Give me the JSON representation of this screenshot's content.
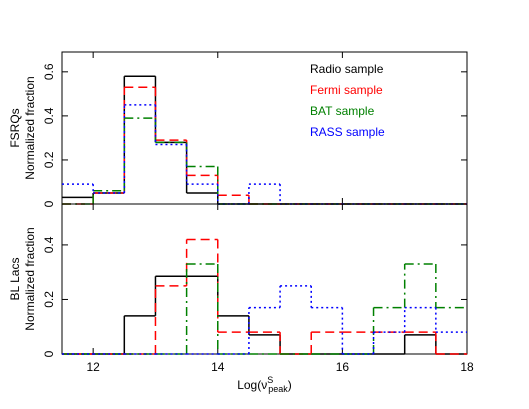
{
  "chart_data": [
    {
      "type": "histogram",
      "ylabel": [
        "FSRQs",
        "Normalized fraction"
      ],
      "bins": [
        11.5,
        12,
        12.5,
        13,
        13.5,
        14,
        14.5,
        15,
        15.5,
        16,
        16.5,
        17,
        17.5,
        18
      ],
      "xlim": [
        11.5,
        18
      ],
      "xticks": [
        12,
        14,
        16,
        18
      ],
      "xtick_labels": false,
      "ylim": [
        0,
        0.69
      ],
      "yticks": [
        0,
        0.2,
        0.4,
        0.6
      ],
      "legend": "top-right",
      "series": [
        {
          "name": "Radio sample",
          "color": "#000000",
          "style": "solid",
          "values": [
            0.03,
            0.05,
            0.58,
            0.28,
            0.05,
            0,
            0,
            0,
            0,
            0,
            0,
            0,
            0
          ]
        },
        {
          "name": "Fermi sample",
          "color": "#ff0000",
          "style": "dashed",
          "values": [
            0,
            0.05,
            0.53,
            0.29,
            0.13,
            0.04,
            0,
            0,
            0,
            0,
            0,
            0,
            0
          ]
        },
        {
          "name": "BAT sample",
          "color": "#008000",
          "style": "dashdot",
          "values": [
            0,
            0.06,
            0.39,
            0.28,
            0.17,
            0,
            0,
            0,
            0,
            0,
            0,
            0,
            0
          ]
        },
        {
          "name": "RASS sample",
          "color": "#0000ff",
          "style": "dotted",
          "values": [
            0.09,
            0.05,
            0.45,
            0.27,
            0.09,
            0,
            0.09,
            0,
            0,
            0,
            0,
            0,
            0
          ]
        }
      ]
    },
    {
      "type": "histogram",
      "ylabel": [
        "BL Lacs",
        "Normalized fraction"
      ],
      "xlabel": {
        "prefix": "Log(ν",
        "sup": "S",
        "sub": "peak",
        "suffix": ")"
      },
      "bins": [
        11.5,
        12,
        12.5,
        13,
        13.5,
        14,
        14.5,
        15,
        15.5,
        16,
        16.5,
        17,
        17.5,
        18
      ],
      "xlim": [
        11.5,
        18
      ],
      "xticks": [
        12,
        14,
        16,
        18
      ],
      "xtick_labels": true,
      "ylim": [
        0,
        0.55
      ],
      "yticks": [
        0,
        0.2,
        0.4
      ],
      "series": [
        {
          "color": "#000000",
          "style": "solid",
          "values": [
            0,
            0,
            0.14,
            0.285,
            0.285,
            0.14,
            0.07,
            0,
            0,
            0,
            0,
            0.07,
            0
          ]
        },
        {
          "color": "#ff0000",
          "style": "dashed",
          "values": [
            0,
            0,
            0,
            0.25,
            0.42,
            0.08,
            0.08,
            0,
            0.08,
            0.08,
            0.08,
            0.08,
            0
          ]
        },
        {
          "color": "#008000",
          "style": "dashdot",
          "values": [
            0,
            0,
            0,
            0,
            0.33,
            0,
            0,
            0,
            0,
            0,
            0.17,
            0.33,
            0.17
          ]
        },
        {
          "color": "#0000ff",
          "style": "dotted",
          "values": [
            0,
            0,
            0,
            0,
            0,
            0,
            0.17,
            0.25,
            0.17,
            0,
            0.08,
            0.17,
            0.08
          ]
        }
      ]
    }
  ]
}
